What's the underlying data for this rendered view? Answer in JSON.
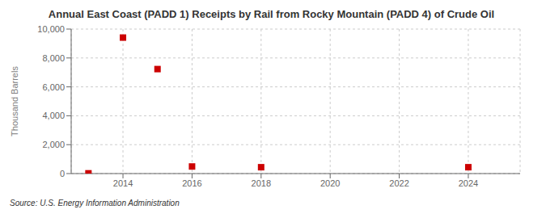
{
  "chart_data": {
    "type": "scatter",
    "title": "Annual East Coast (PADD 1) Receipts by Rail from Rocky Mountain (PADD 4) of Crude Oil",
    "y_label": "Thousand Barrels",
    "annotations": [
      "Source: U.S. Energy Information Administration"
    ],
    "x": [
      2013,
      2014,
      2015,
      2016,
      2018,
      2024
    ],
    "values": [
      18,
      9410,
      7230,
      490,
      440,
      440
    ],
    "color": "#cc0000",
    "marker": "square",
    "xlim": [
      2012.5,
      2025.5
    ],
    "xticks": [
      2014,
      2016,
      2018,
      2020,
      2022,
      2024
    ],
    "ylim": [
      0,
      10000
    ],
    "yticks": [
      0,
      {
        "value": 2000,
        "label": "2,000"
      },
      {
        "value": 4000,
        "label": "4,000"
      },
      {
        "value": 6000,
        "label": "6,000"
      },
      {
        "value": 8000,
        "label": "8,000"
      },
      {
        "value": 10000,
        "label": "10,000"
      }
    ],
    "grid": true
  }
}
